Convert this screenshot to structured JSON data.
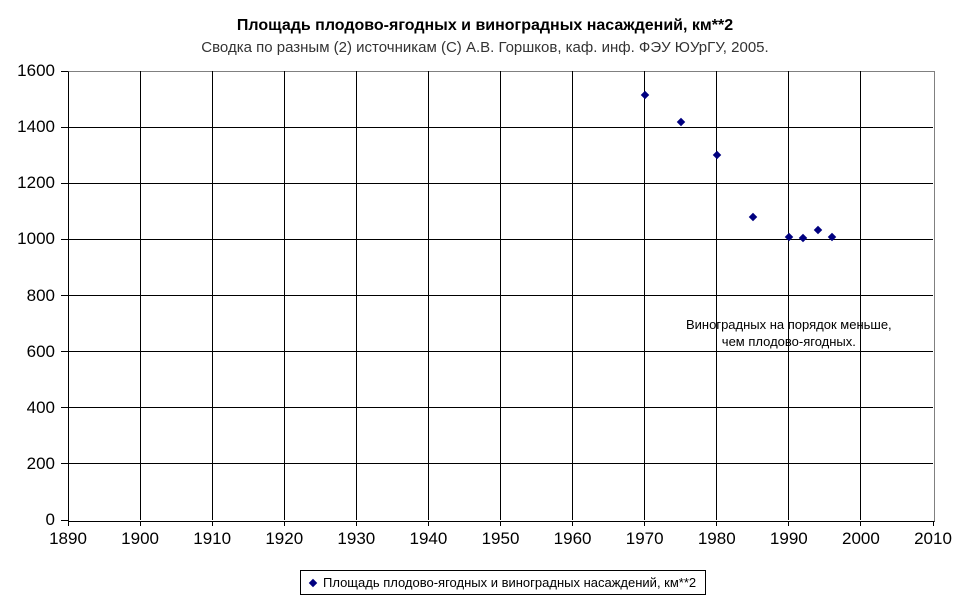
{
  "chart_data": {
    "type": "scatter",
    "title": "Площадь плодово-ягодных и виноградных насаждений, км**2",
    "subtitle": "Сводка по разным (2) источникам (С) А.В. Горшков, каф. инф. ФЭУ ЮУрГУ, 2005.",
    "xlim": [
      1890,
      2010
    ],
    "ylim": [
      0,
      1600
    ],
    "x_ticks": [
      1890,
      1900,
      1910,
      1920,
      1930,
      1940,
      1950,
      1960,
      1970,
      1980,
      1990,
      2000,
      2010
    ],
    "y_ticks": [
      0,
      200,
      400,
      600,
      800,
      1000,
      1200,
      1400,
      1600
    ],
    "grid": true,
    "marker": "diamond",
    "marker_color": "#000080",
    "legend_position": "bottom",
    "series": [
      {
        "name": "Площадь плодово-ягодных и виноградных насаждений, км**2",
        "points": [
          {
            "x": 1970,
            "y": 1515
          },
          {
            "x": 1975,
            "y": 1420
          },
          {
            "x": 1980,
            "y": 1300
          },
          {
            "x": 1985,
            "y": 1080
          },
          {
            "x": 1990,
            "y": 1010
          },
          {
            "x": 1992,
            "y": 1005
          },
          {
            "x": 1994,
            "y": 1035
          },
          {
            "x": 1996,
            "y": 1010
          }
        ]
      }
    ],
    "annotation": {
      "lines": [
        "Виноградных на порядок меньше,",
        "чем плодово-ягодных."
      ],
      "anchor": {
        "x": 1990,
        "y": 700
      }
    },
    "colors": {
      "gridline": "#000000",
      "axis": "#000000",
      "plot_border": "#808080",
      "marker": "#000080"
    }
  }
}
